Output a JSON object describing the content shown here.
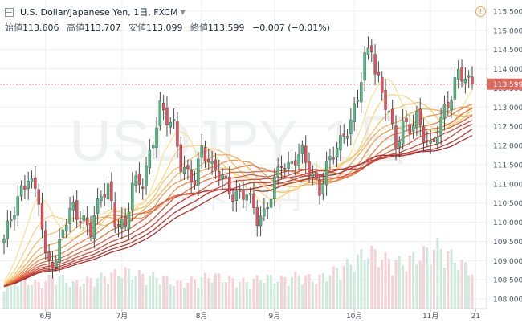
{
  "header": {
    "title": "U.S. Dollar/Japanese Yen, 1日, FXCM",
    "open_label": "始値",
    "open": "113.606",
    "high_label": "高値",
    "high": "113.707",
    "low_label": "安値",
    "low": "113.099",
    "close_label": "終値",
    "close": "113.599",
    "change": "−0.007 (−0.01%)",
    "warning_icon": "!"
  },
  "watermark": {
    "symbol": "USDJPY, 1日",
    "description": "米ドル / 円"
  },
  "colors": {
    "up": "#53b987",
    "down": "#eb4d5c",
    "grid": "#eef0f2",
    "price_line": "#e0665c"
  },
  "chart_data": {
    "type": "candlestick",
    "y_axis": {
      "ylim": [
        107.75,
        115.75
      ],
      "ticks": [
        "108.000",
        "108.500",
        "109.000",
        "109.500",
        "110.000",
        "110.500",
        "111.000",
        "111.500",
        "112.000",
        "112.500",
        "113.000",
        "113.500",
        "114.000",
        "114.500",
        "115.000",
        "115.500"
      ]
    },
    "x_axis": {
      "labels": [
        "6月",
        "7月",
        "8月",
        "9月",
        "10月",
        "11月",
        "21"
      ]
    },
    "current_price": "113.599",
    "anchors": [
      [
        0,
        109.45
      ],
      [
        5,
        110.9
      ],
      [
        7,
        111.3
      ],
      [
        10,
        110.6
      ],
      [
        12,
        108.9
      ],
      [
        15,
        108.9
      ],
      [
        17,
        110.0
      ],
      [
        20,
        110.5
      ],
      [
        22,
        110.0
      ],
      [
        25,
        109.7
      ],
      [
        28,
        110.8
      ],
      [
        30,
        111.0
      ],
      [
        32,
        110.1
      ],
      [
        35,
        109.75
      ],
      [
        37,
        110.9
      ],
      [
        40,
        111.1
      ],
      [
        45,
        113.0
      ],
      [
        47,
        112.6
      ],
      [
        49,
        112.4
      ],
      [
        51,
        111.5
      ],
      [
        55,
        111.2
      ],
      [
        57,
        111.9
      ],
      [
        60,
        111.3
      ],
      [
        63,
        111.2
      ],
      [
        66,
        110.8
      ],
      [
        70,
        110.7
      ],
      [
        73,
        110.0
      ],
      [
        75,
        110.2
      ],
      [
        78,
        111.2
      ],
      [
        80,
        111.6
      ],
      [
        82,
        111.3
      ],
      [
        86,
        111.8
      ],
      [
        89,
        111.3
      ],
      [
        91,
        110.9
      ],
      [
        93,
        111.4
      ],
      [
        97,
        112.0
      ],
      [
        100,
        112.7
      ],
      [
        102,
        113.4
      ],
      [
        104,
        114.3
      ],
      [
        106,
        114.5
      ],
      [
        107,
        113.8
      ],
      [
        109,
        113.3
      ],
      [
        111,
        112.9
      ],
      [
        113,
        112.1
      ],
      [
        115,
        112.6
      ],
      [
        117,
        112.4
      ],
      [
        119,
        112.6
      ],
      [
        121,
        112.2
      ],
      [
        123,
        112.0
      ],
      [
        125,
        112.5
      ],
      [
        127,
        113.0
      ],
      [
        129,
        113.2
      ],
      [
        131,
        113.8
      ],
      [
        133,
        113.7
      ],
      [
        135,
        113.6
      ]
    ],
    "volume_anchors": [
      [
        0,
        0.3
      ],
      [
        5,
        0.35
      ],
      [
        10,
        0.3
      ],
      [
        15,
        0.4
      ],
      [
        20,
        0.3
      ],
      [
        25,
        0.35
      ],
      [
        30,
        0.4
      ],
      [
        35,
        0.45
      ],
      [
        40,
        0.4
      ],
      [
        45,
        0.38
      ],
      [
        50,
        0.3
      ],
      [
        55,
        0.35
      ],
      [
        60,
        0.4
      ],
      [
        65,
        0.35
      ],
      [
        70,
        0.32
      ],
      [
        75,
        0.38
      ],
      [
        80,
        0.35
      ],
      [
        85,
        0.4
      ],
      [
        90,
        0.35
      ],
      [
        95,
        0.45
      ],
      [
        100,
        0.55
      ],
      [
        105,
        0.7
      ],
      [
        110,
        0.6
      ],
      [
        115,
        0.55
      ],
      [
        120,
        0.65
      ],
      [
        125,
        0.75
      ],
      [
        130,
        0.6
      ],
      [
        135,
        0.45
      ]
    ],
    "ribbon": {
      "periods": [
        10,
        15,
        20,
        25,
        30,
        35,
        40,
        45,
        50,
        55,
        60,
        65
      ],
      "colors": [
        "#f7e39a",
        "#f7d584",
        "#f5c46f",
        "#f3b05e",
        "#f09a52",
        "#ec844a",
        "#e67045",
        "#df5e40",
        "#d44e3b",
        "#c84236",
        "#bb3832",
        "#ad2f2d"
      ],
      "warmup_start": 108.3
    }
  }
}
